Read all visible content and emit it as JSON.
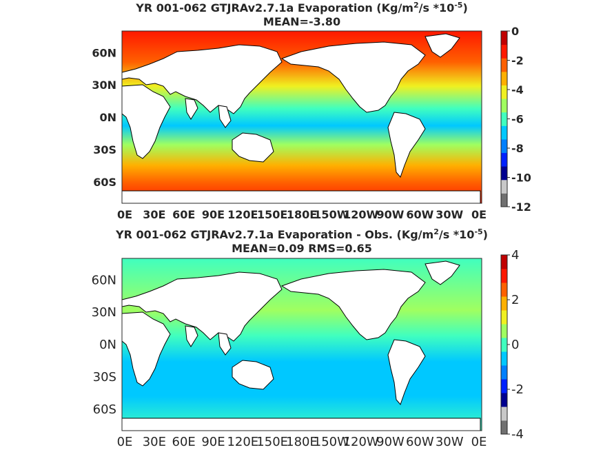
{
  "colors": {
    "land": "#ffffff",
    "coast": "#000000",
    "frame": "#262626",
    "colormap": [
      "#707070",
      "#c8c8c8",
      "#00008f",
      "#0020ff",
      "#0080ff",
      "#00c8ff",
      "#40ffbf",
      "#a0ff60",
      "#f0f020",
      "#ffb000",
      "#ff6000",
      "#ff1800",
      "#c00000"
    ]
  },
  "chart_data": [
    {
      "type": "heatmap",
      "title_prefix": "YR 001-062 GTJRAv2.7.1a  Evaporation (Kg/m",
      "title_sup1": "2",
      "title_mid": "/s *10",
      "title_sup2": "-5",
      "title_suffix": ")",
      "subtitle": "MEAN=-3.80",
      "x_ticks": [
        "0E",
        "30E",
        "60E",
        "90E",
        "120E",
        "150E",
        "180E",
        "150W",
        "120W",
        "90W",
        "60W",
        "30W",
        "0E"
      ],
      "y_ticks": [
        "60N",
        "30N",
        "0N",
        "30S",
        "60S"
      ],
      "colorbar": {
        "ticks": [
          "0",
          "-2",
          "-4",
          "-6",
          "-8",
          "-10",
          "-12"
        ],
        "range": [
          -12,
          0
        ]
      },
      "mean": -3.8
    },
    {
      "type": "heatmap",
      "title_prefix": "YR 001-062 GTJRAv2.7.1a Evaporation - Obs. (Kg/m",
      "title_sup1": "2",
      "title_mid": "/s *10",
      "title_sup2": "-5",
      "title_suffix": ")",
      "subtitle": "MEAN=0.09   RMS=0.65",
      "x_ticks": [
        "0E",
        "30E",
        "60E",
        "90E",
        "120E",
        "150E",
        "180E",
        "150W",
        "120W",
        "90W",
        "60W",
        "30W",
        "0E"
      ],
      "y_ticks": [
        "60N",
        "30N",
        "0N",
        "30S",
        "60S"
      ],
      "colorbar": {
        "ticks": [
          "4",
          "2",
          "0",
          "-2",
          "-4"
        ],
        "range": [
          -4,
          4
        ]
      },
      "mean": 0.09,
      "rms": 0.65
    }
  ]
}
